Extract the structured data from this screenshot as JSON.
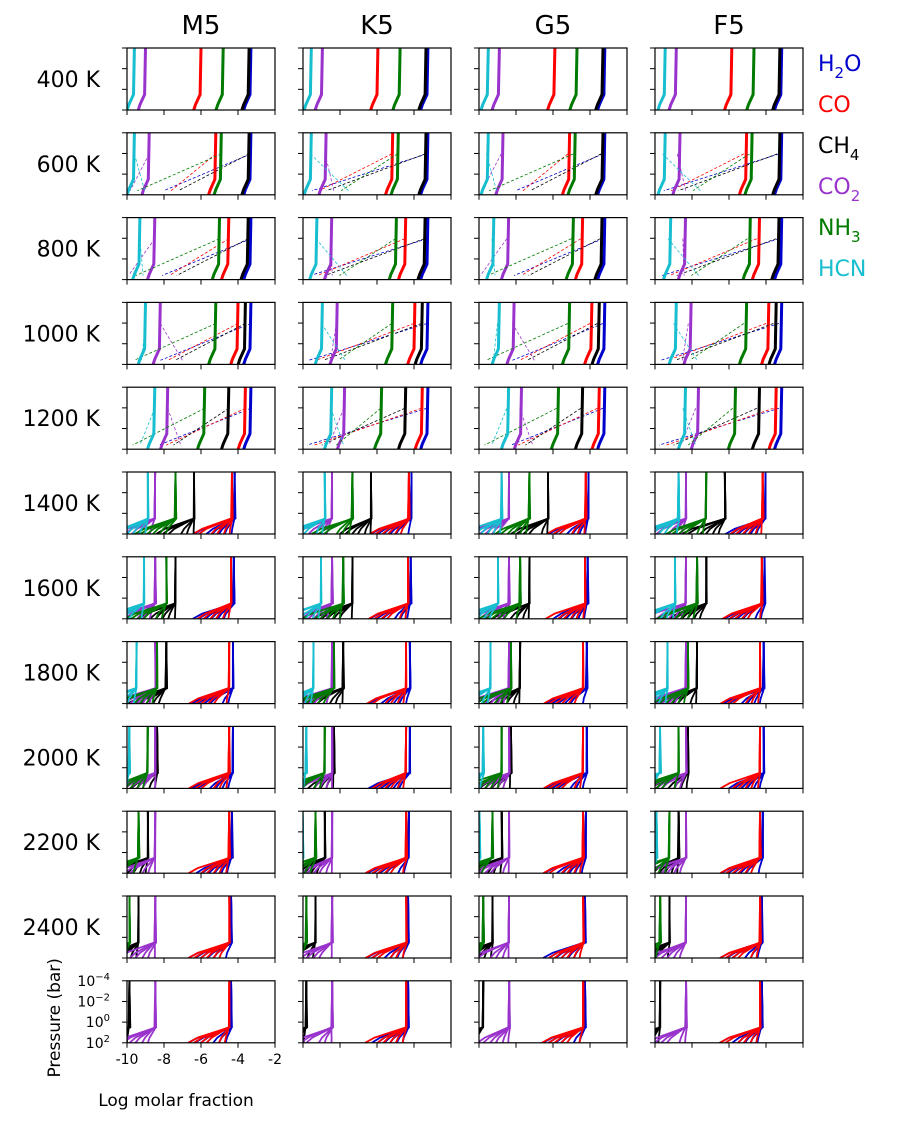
{
  "chart_data": {
    "type": "line",
    "columns": [
      "M5",
      "K5",
      "G5",
      "F5"
    ],
    "rows": [
      "400 K",
      "600 K",
      "800 K",
      "1000 K",
      "1200 K",
      "1400 K",
      "1600 K",
      "1800 K",
      "2000 K",
      "2200 K",
      "2400 K",
      ""
    ],
    "xlabel": "Log molar fraction",
    "ylabel": "Pressure (bar)",
    "xlim": [
      -10,
      -2
    ],
    "xticks": [
      "-10",
      "-8",
      "-6",
      "-4",
      "-2"
    ],
    "ylim": [
      2,
      -4
    ],
    "yscale": "log",
    "yticks": [
      "10",
      "10",
      "10",
      "10"
    ],
    "yticks_exp": [
      "−4",
      "−2",
      "0",
      "2"
    ],
    "legend_position": "right, beside the top rows",
    "series": [
      {
        "name": "H2O",
        "label_main": "H",
        "label_sub": "2",
        "label_tail": "O",
        "color": "#0000cc",
        "x": [
          -3.3,
          -3.3,
          -3.3,
          -3.3,
          -3.3,
          -3.3,
          -3.35,
          -3.4,
          -3.4,
          -3.45,
          -3.5,
          -3.5
        ]
      },
      {
        "name": "CO",
        "label_main": "CO",
        "label_sub": "",
        "label_tail": "",
        "color": "#ff0000",
        "x": [
          -6.0,
          -5.2,
          -4.5,
          -4.0,
          -3.6,
          -3.45,
          -3.5,
          -3.6,
          -3.6,
          -3.6,
          -3.6,
          -3.6
        ]
      },
      {
        "name": "CH4",
        "label_main": "CH",
        "label_sub": "4",
        "label_tail": "",
        "color": "#000000",
        "x": [
          -3.4,
          -3.4,
          -3.45,
          -3.6,
          -4.5,
          -5.5,
          -6.5,
          -7.0,
          -7.5,
          -8.0,
          -8.5,
          -9.0
        ]
      },
      {
        "name": "CO2",
        "label_main": "CO",
        "label_sub": "2",
        "label_tail": "",
        "color": "#9933cc",
        "x": [
          -9.0,
          -8.8,
          -8.5,
          -8.2,
          -7.8,
          -7.6,
          -7.6,
          -7.6,
          -7.6,
          -7.6,
          -7.6,
          -7.6
        ]
      },
      {
        "name": "NH3",
        "label_main": "NH",
        "label_sub": "3",
        "label_tail": "",
        "color": "#007a00",
        "x": [
          -4.8,
          -4.9,
          -5.0,
          -5.2,
          -5.8,
          -6.5,
          -7.0,
          -7.5,
          -8.0,
          -8.5,
          -9.0,
          -9.5
        ]
      },
      {
        "name": "HCN",
        "label_main": "HCN",
        "label_sub": "",
        "label_tail": "",
        "color": "#17becf",
        "x": [
          -9.6,
          -9.6,
          -9.3,
          -9.0,
          -8.5,
          -8.0,
          -8.2,
          -8.6,
          -9.0,
          -9.2,
          -9.5,
          -9.7
        ]
      }
    ]
  }
}
